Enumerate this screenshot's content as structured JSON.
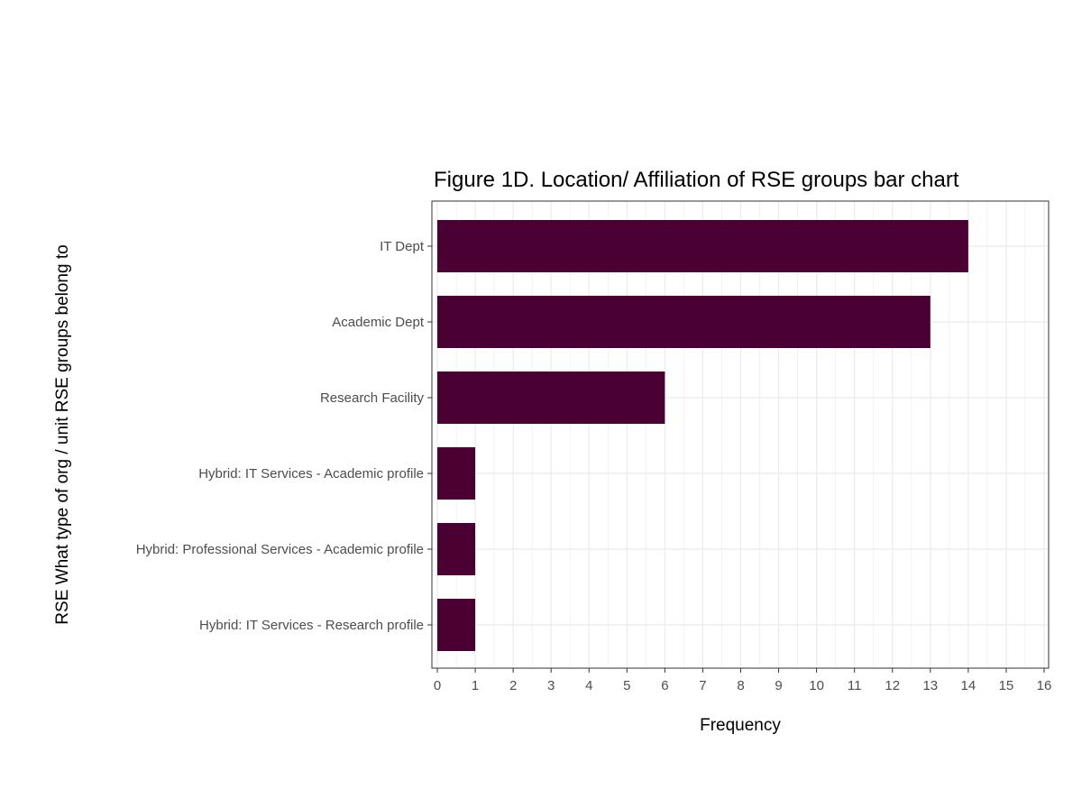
{
  "chart_data": {
    "type": "bar",
    "orientation": "horizontal",
    "title": "Figure 1D. Location/ Affiliation of RSE groups bar chart",
    "xlabel": "Frequency",
    "ylabel": "RSE What type of org / unit RSE groups belong to",
    "categories": [
      "IT Dept",
      "Academic Dept",
      "Research Facility",
      "Hybrid: IT Services - Academic profile",
      "Hybrid: Professional Services - Academic profile",
      "Hybrid: IT Services - Research profile"
    ],
    "values": [
      14,
      13,
      6,
      1,
      1,
      1
    ],
    "xlim": [
      0,
      16
    ],
    "xticks": [
      "0",
      "1",
      "2",
      "3",
      "4",
      "5",
      "6",
      "7",
      "8",
      "9",
      "10",
      "11",
      "12",
      "13",
      "14",
      "15",
      "16"
    ],
    "grid": true,
    "bar_color": "#4a0033",
    "grid_color": "#ebebeb",
    "panel_border_color": "#333333"
  }
}
